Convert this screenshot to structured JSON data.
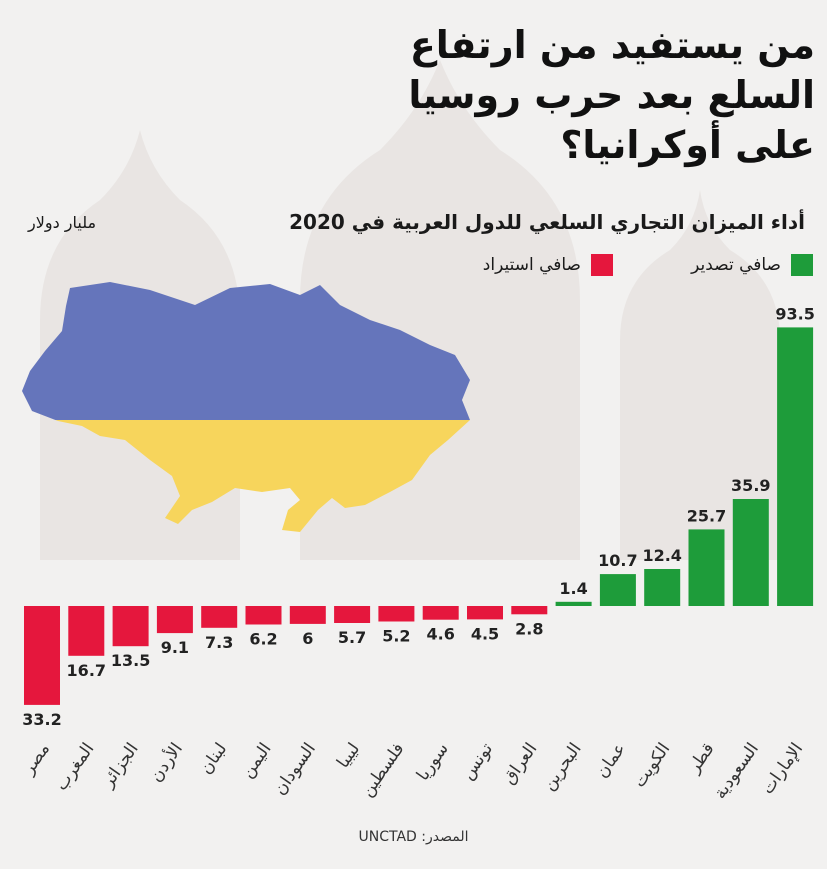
{
  "title": {
    "line1": "من يستفيد من ارتفاع",
    "line2": "السلع بعد حرب روسيا",
    "line3": "على أوكرانيا؟"
  },
  "source": "المصدر: UNCTAD",
  "colors": {
    "export": "#1e9c3a",
    "import": "#e5173d"
  },
  "chart_data": {
    "type": "bar",
    "title": "أداء الميزان التجاري السلعي للدول العربية في 2020",
    "ylabel": "مليار دولار",
    "xlabel": "",
    "legend_position": "top-right",
    "series": [
      {
        "name": "صافي تصدير"
      },
      {
        "name": "صافي استيراد"
      }
    ],
    "categories": [
      "مصر",
      "المغرب",
      "الجزائر",
      "الأردن",
      "لبنان",
      "اليمن",
      "السودان",
      "ليبيا",
      "فلسطين",
      "سوريا",
      "تونس",
      "العراق",
      "البحرين",
      "عمان",
      "الكويت",
      "قطر",
      "السعودية",
      "الإمارات"
    ],
    "values": [
      -33.2,
      -16.7,
      -13.5,
      -9.1,
      -7.3,
      -6.2,
      -6,
      -5.7,
      -5.2,
      -4.6,
      -4.5,
      -2.8,
      1.4,
      10.7,
      12.4,
      25.7,
      35.9,
      93.5
    ],
    "labels": [
      "33.2",
      "16.7",
      "13.5",
      "9.1",
      "7.3",
      "6.2",
      "6",
      "5.7",
      "5.2",
      "4.6",
      "4.5",
      "2.8",
      "1.4",
      "10.7",
      "12.4",
      "25.7",
      "35.9",
      "93.5"
    ],
    "ylim": [
      -33.2,
      93.5
    ]
  }
}
